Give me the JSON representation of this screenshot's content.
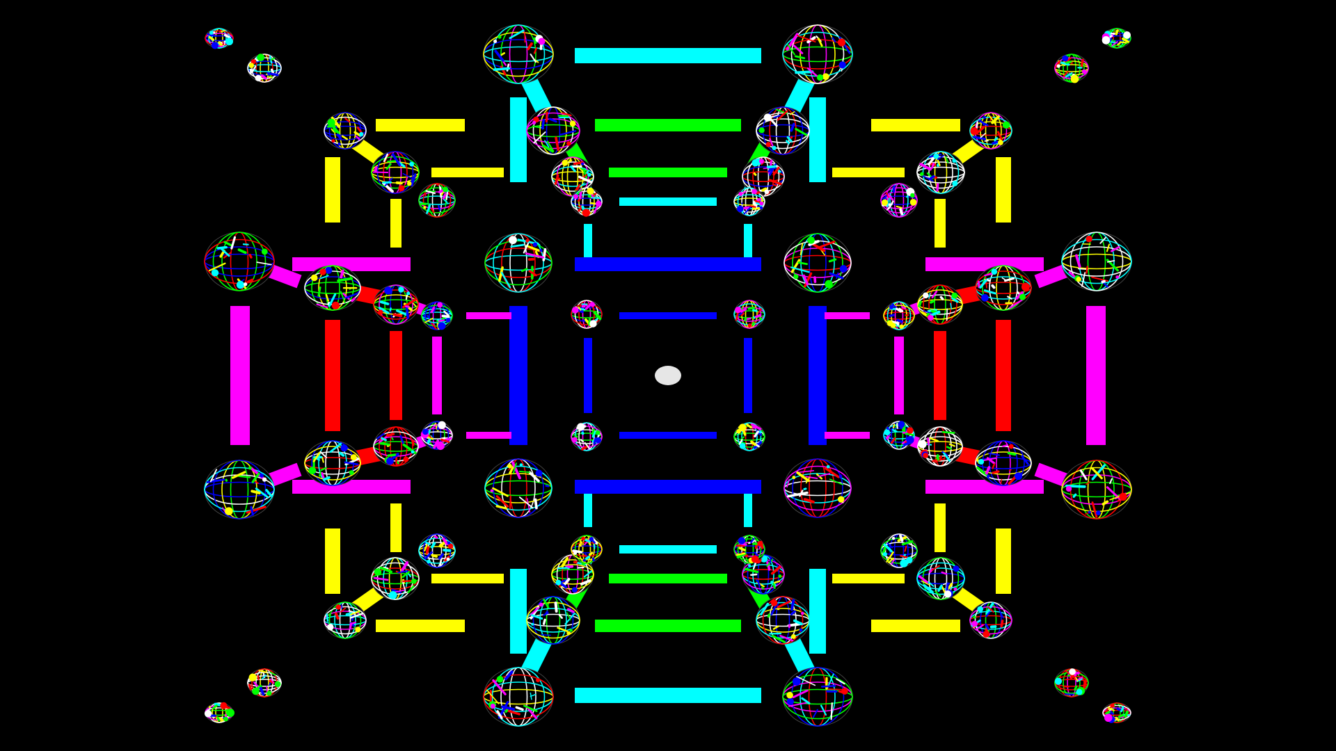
{
  "scene": {
    "background": "#000000",
    "center_dot": "#e6e6e6",
    "colors": {
      "cyan": "#00ffff",
      "green": "#00ff00",
      "blue": "#0000ff",
      "yellow": "#ffff00",
      "magenta": "#ff00ff",
      "red": "#ff0000"
    },
    "ornament_palette": [
      "#00ffff",
      "#ff00ff",
      "#ffff00",
      "#00ff00",
      "#ff0000",
      "#0000ff",
      "#ffffff"
    ]
  }
}
